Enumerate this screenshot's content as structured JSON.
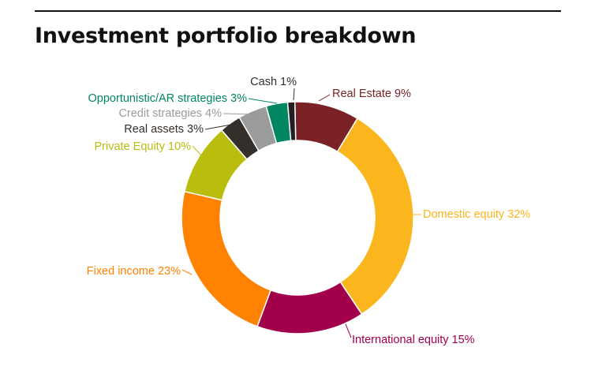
{
  "page": {
    "title": "Investment portfolio breakdown"
  },
  "chart_data": {
    "type": "pie",
    "style": "donut",
    "legend": "none",
    "categories": [
      "Real Estate",
      "Domestic equity",
      "International equity",
      "Fixed income",
      "Private Equity",
      "Real assets",
      "Credit strategies",
      "Opportunistic/AR strategies",
      "Cash"
    ],
    "values": [
      9,
      32,
      15,
      23,
      10,
      3,
      4,
      3,
      1
    ],
    "labels": [
      "Real Estate 9%",
      "Domestic equity 32%",
      "International equity 15%",
      "Fixed income 23%",
      "Private Equity 10%",
      "Real assets 3%",
      "Credit strategies 4%",
      "Opportunistic/AR strategies 3%",
      "Cash 1%"
    ],
    "colors": [
      "#7a2226",
      "#fbb61d",
      "#a3004c",
      "#ff8200",
      "#b8bd0e",
      "#352f2c",
      "#9b9b9b",
      "#008761",
      "#221f20"
    ],
    "label_colors": [
      "#7a2226",
      "#fbb61d",
      "#a3004c",
      "#ff8200",
      "#b8bd0e",
      "#352f2c",
      "#9b9b9b",
      "#008761",
      "#352f2c"
    ]
  }
}
